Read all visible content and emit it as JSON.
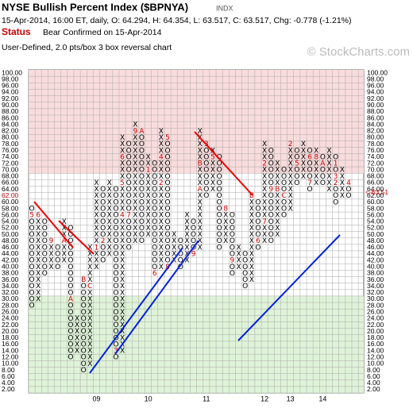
{
  "chart_data": {
    "type": "point-and-figure",
    "title": "NYSE Bullish Percent Index ($BPNYA)",
    "exchange": "INDX",
    "quote": "15-Apr-2014, 16:00 ET, daily, O: 64.294, H: 64.354, L: 63.517, C: 63.517, Chg: -0.778 (-1.21%)",
    "status_label": "Status",
    "status": "Bear Confirmed on 15-Apr-2014",
    "subtitle": "User-Defined, 2.0 pts/box 3 box reversal chart",
    "watermark": "© StockCharts.com",
    "last_label": "<-63.51",
    "last_box": 62,
    "box_size": 2,
    "ylim": [
      2,
      100
    ],
    "yticks": [
      {
        "value": 2,
        "label": "2.00"
      },
      {
        "value": 4,
        "label": "4.00"
      },
      {
        "value": 6,
        "label": "6.00"
      },
      {
        "value": 8,
        "label": "8.00"
      },
      {
        "value": 10,
        "label": "10.00"
      },
      {
        "value": 12,
        "label": "12.00"
      },
      {
        "value": 14,
        "label": "14.00"
      },
      {
        "value": 16,
        "label": "16.00"
      },
      {
        "value": 18,
        "label": "18.00"
      },
      {
        "value": 20,
        "label": "20.00"
      },
      {
        "value": 22,
        "label": "22.00"
      },
      {
        "value": 24,
        "label": "24.00"
      },
      {
        "value": 26,
        "label": "26.00"
      },
      {
        "value": 28,
        "label": "28.00"
      },
      {
        "value": 30,
        "label": "30.00"
      },
      {
        "value": 32,
        "label": "32.00"
      },
      {
        "value": 34,
        "label": "34.00"
      },
      {
        "value": 36,
        "label": "36.00"
      },
      {
        "value": 38,
        "label": "38.00"
      },
      {
        "value": 40,
        "label": "40.00"
      },
      {
        "value": 42,
        "label": "42.00"
      },
      {
        "value": 44,
        "label": "44.00"
      },
      {
        "value": 46,
        "label": "46.00"
      },
      {
        "value": 48,
        "label": "48.00"
      },
      {
        "value": 50,
        "label": "50.00"
      },
      {
        "value": 52,
        "label": "52.00"
      },
      {
        "value": 54,
        "label": "54.00"
      },
      {
        "value": 56,
        "label": "56.00"
      },
      {
        "value": 58,
        "label": "58.00"
      },
      {
        "value": 60,
        "label": "60.00"
      },
      {
        "value": 62,
        "label": "62.00"
      },
      {
        "value": 64,
        "label": "64.00"
      },
      {
        "value": 66,
        "label": "66.00"
      },
      {
        "value": 68,
        "label": "68.00"
      },
      {
        "value": 70,
        "label": "70.00"
      },
      {
        "value": 72,
        "label": "72.00"
      },
      {
        "value": 74,
        "label": "74.00"
      },
      {
        "value": 76,
        "label": "76.00"
      },
      {
        "value": 78,
        "label": "78.00"
      },
      {
        "value": 80,
        "label": "80.00"
      },
      {
        "value": 82,
        "label": "82.00"
      },
      {
        "value": 84,
        "label": "84.00"
      },
      {
        "value": 86,
        "label": "86.00"
      },
      {
        "value": 88,
        "label": "88.00"
      },
      {
        "value": 90,
        "label": "90.00"
      },
      {
        "value": 92,
        "label": "92.00"
      },
      {
        "value": 94,
        "label": "94.00"
      },
      {
        "value": 96,
        "label": "96.00"
      },
      {
        "value": 98,
        "label": "98.00"
      },
      {
        "value": 100,
        "label": "100.00"
      }
    ],
    "bands": [
      {
        "from": 70,
        "to": 100,
        "color": "#f9dcdc"
      },
      {
        "from": 2,
        "to": 30,
        "color": "#dff3d8"
      }
    ],
    "x_color": "#000000",
    "o_color": "#000000",
    "marker_color": "#cc0000",
    "columns": [
      {
        "type": "O",
        "high": 58,
        "low": 28,
        "markers": [
          {
            "value": 56,
            "label": "5"
          }
        ]
      },
      {
        "type": "X",
        "high": 56,
        "low": 30,
        "markers": [
          {
            "value": 56,
            "label": "6"
          }
        ]
      },
      {
        "type": "O",
        "high": 54,
        "low": 38,
        "markers": []
      },
      {
        "type": "X",
        "high": 48,
        "low": 40,
        "markers": [
          {
            "value": 48,
            "label": "9"
          }
        ]
      },
      {
        "type": "O",
        "high": 46,
        "low": 40,
        "markers": []
      },
      {
        "type": "X",
        "high": 54,
        "low": 42,
        "markers": [
          {
            "value": 48,
            "label": "A"
          }
        ]
      },
      {
        "type": "O",
        "high": 52,
        "low": 12,
        "markers": [
          {
            "value": 30,
            "label": "A"
          }
        ]
      },
      {
        "type": "X",
        "high": 24,
        "low": 14,
        "markers": []
      },
      {
        "type": "O",
        "high": 36,
        "low": 8,
        "markers": [
          {
            "value": 36,
            "label": "B"
          }
        ]
      },
      {
        "type": "X",
        "high": 46,
        "low": 10,
        "markers": [
          {
            "value": 34,
            "label": "C"
          }
        ]
      },
      {
        "type": "X",
        "high": 66,
        "low": 40,
        "markers": [
          {
            "value": 46,
            "label": "1"
          }
        ],
        "year": "09"
      },
      {
        "type": "O",
        "high": 64,
        "low": 42,
        "markers": [
          {
            "value": 48,
            "label": "2"
          }
        ]
      },
      {
        "type": "X",
        "high": 66,
        "low": 44,
        "markers": []
      },
      {
        "type": "O",
        "high": 64,
        "low": 12,
        "markers": [
          {
            "value": 14,
            "label": "3"
          }
        ]
      },
      {
        "type": "X",
        "high": 80,
        "low": 14,
        "markers": [
          {
            "value": 56,
            "label": "4"
          },
          {
            "value": 66,
            "label": "5"
          },
          {
            "value": 74,
            "label": "6"
          }
        ]
      },
      {
        "type": "O",
        "high": 78,
        "low": 46,
        "markers": [
          {
            "value": 56,
            "label": "7"
          }
        ]
      },
      {
        "type": "X",
        "high": 84,
        "low": 48,
        "markers": [
          {
            "value": 82,
            "label": "9"
          }
        ]
      },
      {
        "type": "O",
        "high": 82,
        "low": 48,
        "markers": [
          {
            "value": 82,
            "label": "A"
          }
        ]
      },
      {
        "type": "X",
        "high": 74,
        "low": 50,
        "markers": [
          {
            "value": 70,
            "label": "1"
          }
        ],
        "year": "10"
      },
      {
        "type": "O",
        "high": 72,
        "low": 38,
        "markers": [
          {
            "value": 38,
            "label": "6"
          }
        ]
      },
      {
        "type": "X",
        "high": 82,
        "low": 40,
        "markers": [
          {
            "value": 66,
            "label": "2"
          },
          {
            "value": 74,
            "label": "4"
          }
        ]
      },
      {
        "type": "O",
        "high": 80,
        "low": 40,
        "markers": [
          {
            "value": 80,
            "label": "5"
          },
          {
            "value": 40,
            "label": "8"
          }
        ]
      },
      {
        "type": "X",
        "high": 50,
        "low": 42,
        "markers": []
      },
      {
        "type": "O",
        "high": 48,
        "low": 40,
        "markers": []
      },
      {
        "type": "X",
        "high": 56,
        "low": 42,
        "markers": []
      },
      {
        "type": "O",
        "high": 54,
        "low": 44,
        "markers": [
          {
            "value": 44,
            "label": "9"
          }
        ]
      },
      {
        "type": "X",
        "high": 82,
        "low": 46,
        "markers": [
          {
            "value": 64,
            "label": "A"
          },
          {
            "value": 72,
            "label": "B"
          }
        ]
      },
      {
        "type": "O",
        "high": 78,
        "low": 62,
        "markers": [
          {
            "value": 78,
            "label": "3"
          }
        ],
        "year": "11"
      },
      {
        "type": "X",
        "high": 76,
        "low": 64,
        "markers": [
          {
            "value": 74,
            "label": "5"
          }
        ]
      },
      {
        "type": "O",
        "high": 74,
        "low": 46,
        "markers": []
      },
      {
        "type": "X",
        "high": 58,
        "low": 48,
        "markers": [
          {
            "value": 58,
            "label": "8"
          }
        ]
      },
      {
        "type": "O",
        "high": 56,
        "low": 38,
        "markers": [
          {
            "value": 42,
            "label": "9"
          }
        ]
      },
      {
        "type": "X",
        "high": 46,
        "low": 40,
        "markers": []
      },
      {
        "type": "O",
        "high": 44,
        "low": 34,
        "markers": []
      },
      {
        "type": "X",
        "high": 62,
        "low": 36,
        "markers": [
          {
            "value": 62,
            "label": "B"
          }
        ]
      },
      {
        "type": "O",
        "high": 60,
        "low": 46,
        "markers": [
          {
            "value": 48,
            "label": "6"
          }
        ]
      },
      {
        "type": "X",
        "high": 78,
        "low": 48,
        "markers": [
          {
            "value": 54,
            "label": "7"
          },
          {
            "value": 72,
            "label": "2"
          }
        ],
        "year": "12"
      },
      {
        "type": "O",
        "high": 76,
        "low": 48,
        "markers": [
          {
            "value": 64,
            "label": "9"
          }
        ]
      },
      {
        "type": "X",
        "high": 72,
        "low": 50,
        "markers": [
          {
            "value": 64,
            "label": "B"
          }
        ]
      },
      {
        "type": "O",
        "high": 70,
        "low": 56,
        "markers": [
          {
            "value": 62,
            "label": "C"
          }
        ]
      },
      {
        "type": "X",
        "high": 78,
        "low": 58,
        "markers": [
          {
            "value": 78,
            "label": "2"
          }
        ],
        "year": "13"
      },
      {
        "type": "O",
        "high": 76,
        "low": 66,
        "markers": [
          {
            "value": 72,
            "label": "5"
          }
        ]
      },
      {
        "type": "X",
        "high": 78,
        "low": 68,
        "markers": []
      },
      {
        "type": "O",
        "high": 76,
        "low": 64,
        "markers": [
          {
            "value": 66,
            "label": "7"
          },
          {
            "value": 74,
            "label": "6"
          }
        ]
      },
      {
        "type": "X",
        "high": 76,
        "low": 66,
        "markers": [
          {
            "value": 74,
            "label": "8"
          }
        ]
      },
      {
        "type": "O",
        "high": 74,
        "low": 66,
        "markers": [
          {
            "value": 72,
            "label": "A"
          }
        ],
        "year": "14"
      },
      {
        "type": "X",
        "high": 76,
        "low": 64,
        "markers": []
      },
      {
        "type": "O",
        "high": 74,
        "low": 60,
        "markers": [
          {
            "value": 72,
            "label": "1"
          },
          {
            "value": 68,
            "label": "3"
          },
          {
            "value": 66,
            "label": "2"
          }
        ]
      },
      {
        "type": "X",
        "high": 70,
        "low": 62,
        "markers": []
      },
      {
        "type": "O",
        "high": 66,
        "low": 62,
        "markers": [
          {
            "value": 66,
            "label": "4"
          }
        ]
      }
    ]
  }
}
